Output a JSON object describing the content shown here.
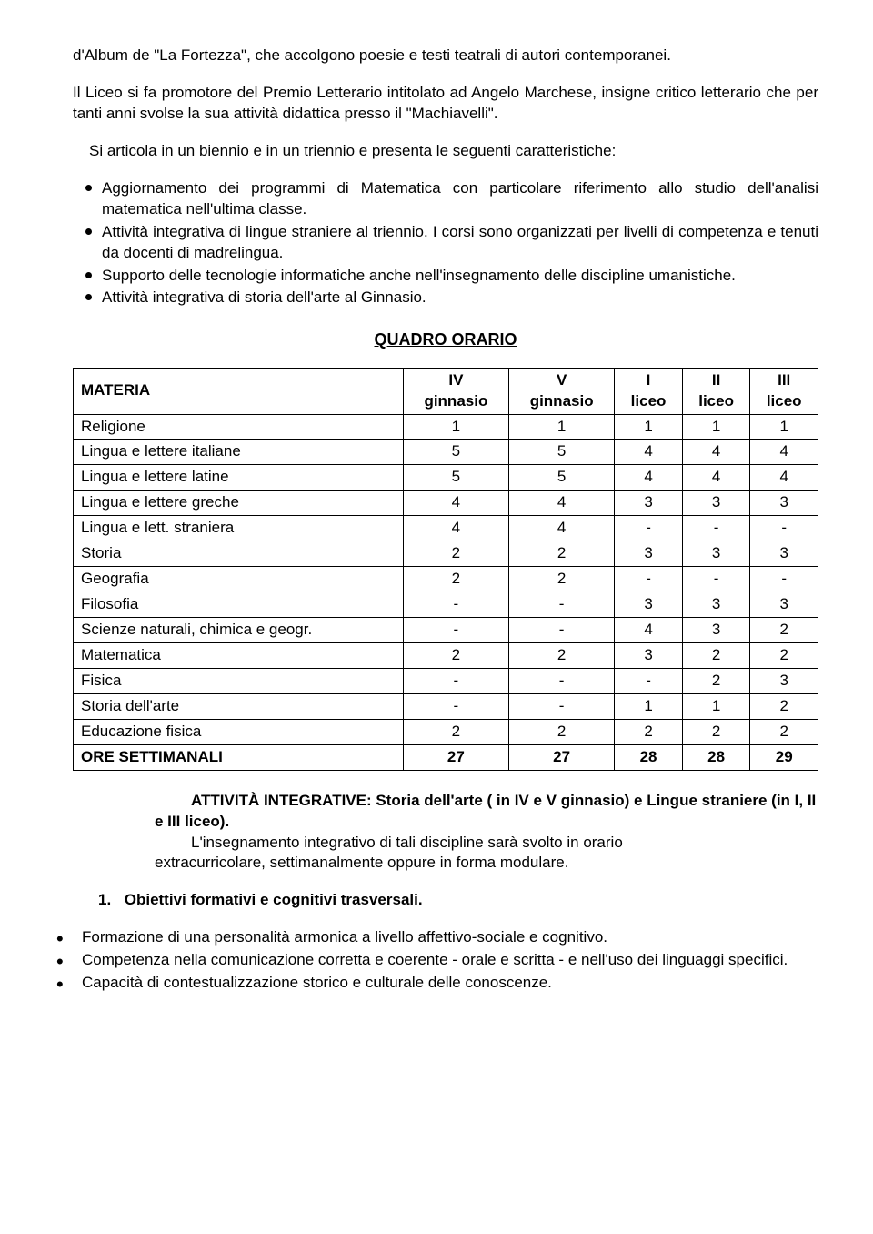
{
  "intro": {
    "p1": "d'Album de \"La Fortezza\", che accolgono poesie e testi teatrali di autori contemporanei.",
    "p2": "Il Liceo si fa promotore del Premio Letterario intitolato ad Angelo Marchese, insigne critico letterario che per tanti anni svolse la sua attività didattica presso il \"Machiavelli\".",
    "link": "Si  articola in un biennio e in un triennio e presenta le seguenti caratteristiche:"
  },
  "features": [
    "Aggiornamento dei programmi di Matematica con particolare riferimento allo studio dell'analisi matematica nell'ultima classe.",
    "Attività integrativa di lingue straniere al triennio. I corsi sono organizzati per livelli di competenza e tenuti da docenti di madrelingua.",
    "Supporto delle tecnologie informatiche anche nell'insegnamento delle discipline umanistiche.",
    "Attività integrativa di storia dell'arte al Ginnasio."
  ],
  "quadro_title": "QUADRO ORARIO",
  "table": {
    "materia_label": "MATERIA",
    "columns": [
      {
        "top": "IV",
        "bottom": "ginnasio"
      },
      {
        "top": "V",
        "bottom": "ginnasio"
      },
      {
        "top": "I",
        "bottom": "liceo"
      },
      {
        "top": "II",
        "bottom": "liceo"
      },
      {
        "top": "III",
        "bottom": "liceo"
      }
    ],
    "rows": [
      {
        "subject": "Religione",
        "vals": [
          "1",
          "1",
          "1",
          "1",
          "1"
        ]
      },
      {
        "subject": "Lingua e lettere italiane",
        "vals": [
          "5",
          "5",
          "4",
          "4",
          "4"
        ]
      },
      {
        "subject": "Lingua e lettere latine",
        "vals": [
          "5",
          "5",
          "4",
          "4",
          "4"
        ]
      },
      {
        "subject": "Lingua e lettere greche",
        "vals": [
          "4",
          "4",
          "3",
          "3",
          "3"
        ]
      },
      {
        "subject": "Lingua e lett. straniera",
        "vals": [
          "4",
          "4",
          "-",
          "-",
          "-"
        ]
      },
      {
        "subject": "Storia",
        "vals": [
          "2",
          "2",
          "3",
          "3",
          "3"
        ]
      },
      {
        "subject": "Geografia",
        "vals": [
          "2",
          "2",
          "-",
          "-",
          "-"
        ]
      },
      {
        "subject": "Filosofia",
        "vals": [
          "-",
          "-",
          "3",
          "3",
          "3"
        ]
      },
      {
        "subject": "Scienze naturali, chimica e geogr.",
        "vals": [
          "-",
          "-",
          "4",
          "3",
          "2"
        ]
      },
      {
        "subject": "Matematica",
        "vals": [
          "2",
          "2",
          "3",
          "2",
          "2"
        ]
      },
      {
        "subject": "Fisica",
        "vals": [
          "-",
          "-",
          "-",
          "2",
          "3"
        ]
      },
      {
        "subject": "Storia dell'arte",
        "vals": [
          "-",
          "-",
          "1",
          "1",
          "2"
        ]
      },
      {
        "subject": "Educazione fisica",
        "vals": [
          "2",
          "2",
          "2",
          "2",
          "2"
        ]
      }
    ],
    "totals": {
      "label": "ORE SETTIMANALI",
      "vals": [
        "27",
        "27",
        "28",
        "28",
        "29"
      ]
    }
  },
  "integrative": {
    "heading_bold": "ATTIVITÀ INTEGRATIVE: Storia dell'arte ( in IV e V ginnasio) e Lingue straniere (in I, II e III liceo).",
    "cont1": "L'insegnamento integrativo di tali discipline sarà svolto in orario",
    "cont2": "extracurricolare, settimanalmente oppure in forma modulare."
  },
  "numbered": {
    "num": "1.",
    "text": "Obiettivi formativi e cognitivi trasversali."
  },
  "objectives": [
    "Formazione di una personalità armonica a livello affettivo-sociale e cognitivo.",
    "Competenza nella comunicazione corretta e coerente - orale e scritta - e nell'uso dei linguaggi specifici.",
    "Capacità di contestualizzazione storico e culturale delle conoscenze."
  ]
}
